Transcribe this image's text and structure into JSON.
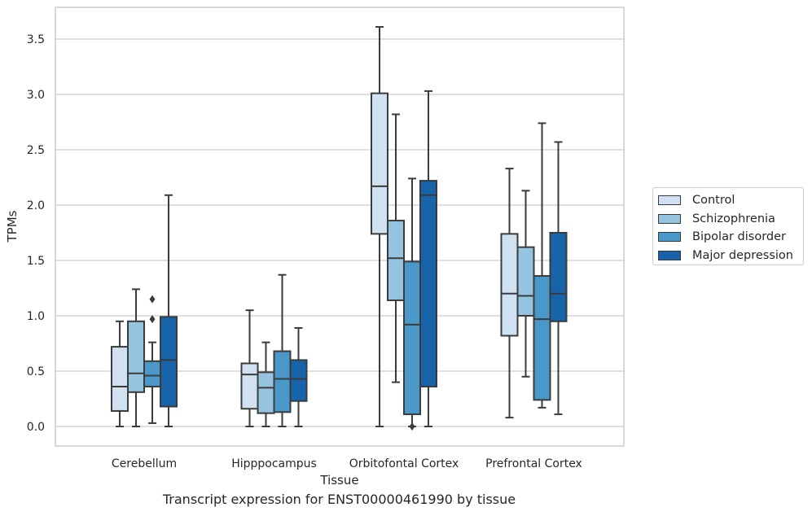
{
  "chart_data": {
    "type": "box",
    "title": "",
    "xlabel": "Tissue",
    "ylabel": "TPMs",
    "caption": "Transcript expression for ENST00000461990 by tissue",
    "categories": [
      "Cerebellum",
      "Hipppocampus",
      "Orbitofontal Cortex",
      "Prefrontal Cortex"
    ],
    "ylim": [
      -0.17,
      3.78
    ],
    "yticks": [
      "0.0",
      "0.5",
      "1.0",
      "1.5",
      "2.0",
      "2.5",
      "3.0",
      "3.5"
    ],
    "grid": "horizontal",
    "legend_position": "right",
    "series": [
      {
        "name": "Control",
        "color": "#d0e1f2",
        "boxes": [
          {
            "whislo": 0.0,
            "q1": 0.14,
            "median": 0.36,
            "q3": 0.72,
            "whishi": 0.95,
            "fliers": []
          },
          {
            "whislo": 0.0,
            "q1": 0.16,
            "median": 0.47,
            "q3": 0.57,
            "whishi": 1.05,
            "fliers": []
          },
          {
            "whislo": 0.0,
            "q1": 1.74,
            "median": 2.17,
            "q3": 3.01,
            "whishi": 3.61,
            "fliers": []
          },
          {
            "whislo": 0.08,
            "q1": 0.82,
            "median": 1.2,
            "q3": 1.74,
            "whishi": 2.33,
            "fliers": []
          }
        ]
      },
      {
        "name": "Schizophrenia",
        "color": "#94c4df",
        "boxes": [
          {
            "whislo": 0.0,
            "q1": 0.31,
            "median": 0.48,
            "q3": 0.95,
            "whishi": 1.24,
            "fliers": []
          },
          {
            "whislo": 0.0,
            "q1": 0.12,
            "median": 0.35,
            "q3": 0.49,
            "whishi": 0.76,
            "fliers": []
          },
          {
            "whislo": 0.4,
            "q1": 1.14,
            "median": 1.52,
            "q3": 1.86,
            "whishi": 2.82,
            "fliers": []
          },
          {
            "whislo": 0.45,
            "q1": 1.0,
            "median": 1.18,
            "q3": 1.62,
            "whishi": 2.13,
            "fliers": []
          }
        ]
      },
      {
        "name": "Bipolar disorder",
        "color": "#4a98c9",
        "boxes": [
          {
            "whislo": 0.03,
            "q1": 0.36,
            "median": 0.46,
            "q3": 0.59,
            "whishi": 0.76,
            "fliers": [
              0.97,
              1.15
            ]
          },
          {
            "whislo": 0.0,
            "q1": 0.13,
            "median": 0.43,
            "q3": 0.68,
            "whishi": 1.37,
            "fliers": []
          },
          {
            "whislo": 0.0,
            "q1": 0.11,
            "median": 0.92,
            "q3": 1.49,
            "whishi": 2.24,
            "fliers": [
              0.0
            ]
          },
          {
            "whislo": 0.17,
            "q1": 0.24,
            "median": 0.97,
            "q3": 1.36,
            "whishi": 2.74,
            "fliers": []
          }
        ]
      },
      {
        "name": "Major depression",
        "color": "#1764ab",
        "boxes": [
          {
            "whislo": 0.0,
            "q1": 0.18,
            "median": 0.6,
            "q3": 0.99,
            "whishi": 2.09,
            "fliers": []
          },
          {
            "whislo": 0.0,
            "q1": 0.23,
            "median": 0.43,
            "q3": 0.6,
            "whishi": 0.89,
            "fliers": []
          },
          {
            "whislo": 0.0,
            "q1": 0.36,
            "median": 2.09,
            "q3": 2.22,
            "whishi": 3.03,
            "fliers": []
          },
          {
            "whislo": 0.11,
            "q1": 0.95,
            "median": 1.2,
            "q3": 1.75,
            "whishi": 2.57,
            "fliers": []
          }
        ]
      }
    ]
  }
}
